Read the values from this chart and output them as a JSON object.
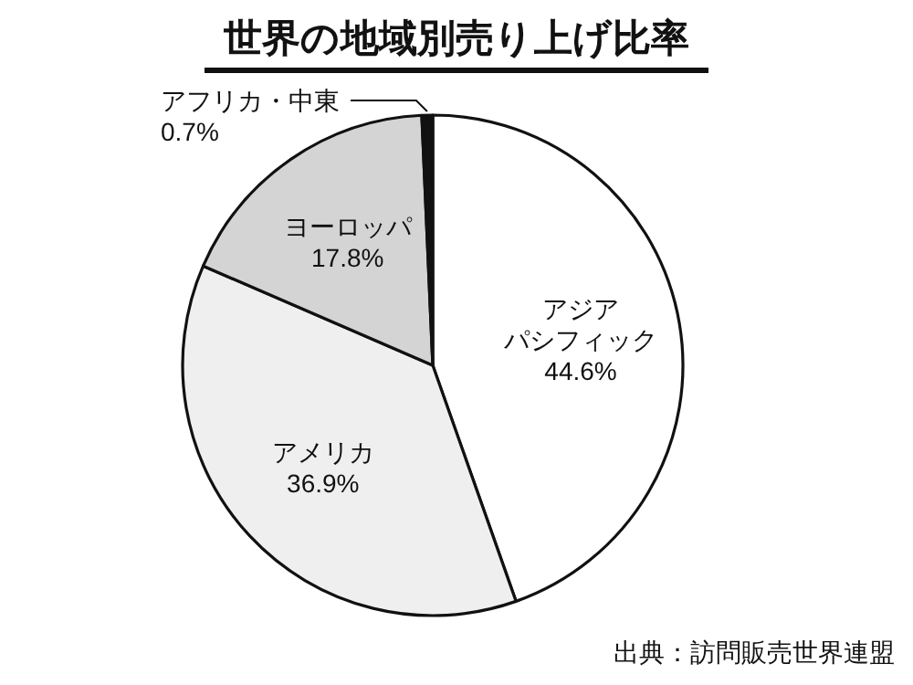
{
  "chart_data": {
    "type": "pie",
    "title": "世界の地域別売り上げ比率",
    "categories": [
      "アジアパシフィック",
      "アメリカ",
      "ヨーロッパ",
      "アフリカ・中東"
    ],
    "values": [
      44.6,
      36.9,
      17.8,
      0.7
    ],
    "colors": [
      "#ffffff",
      "#efefef",
      "#d4d4d4",
      "#111111"
    ],
    "value_labels": [
      "44.6%",
      "36.9%",
      "17.8%",
      "0.7%"
    ],
    "annotations": [
      "出典：訪問販売世界連盟"
    ]
  }
}
